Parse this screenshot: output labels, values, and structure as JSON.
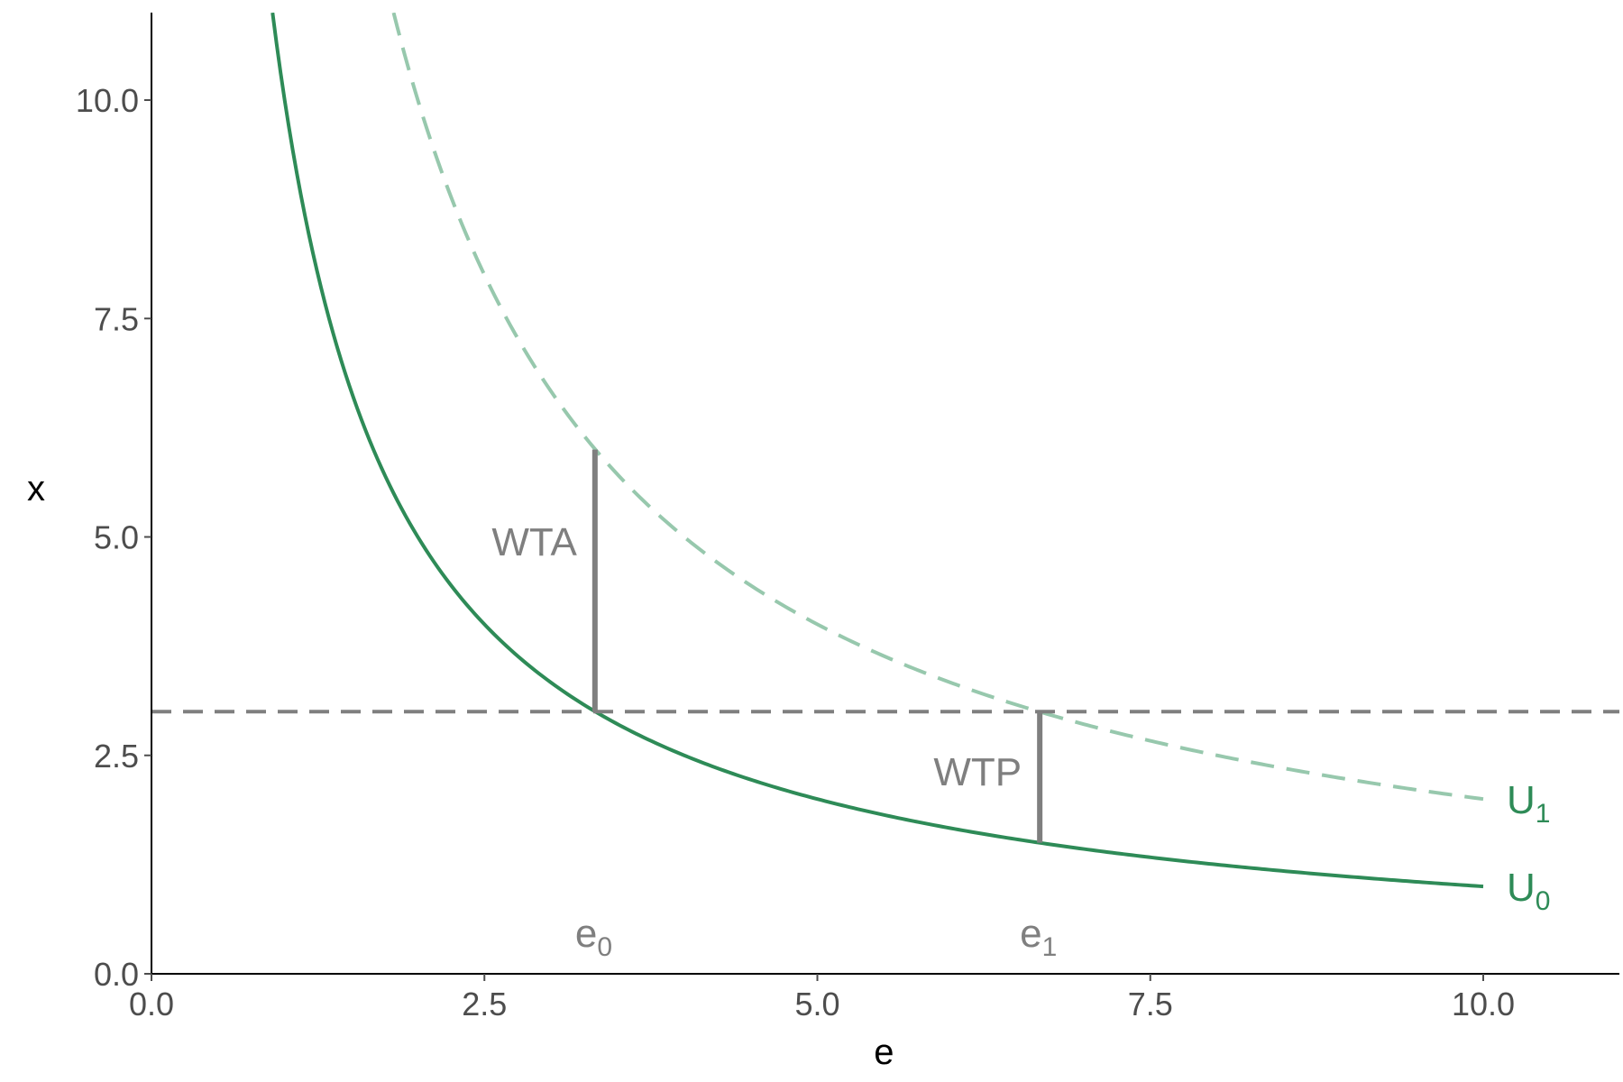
{
  "colors": {
    "u0": "#2e8b57",
    "u1": "#97c8ad",
    "guide": "#7f7f7f",
    "axis": "#000000",
    "tick_text": "#4d4d4d"
  },
  "chart_data": {
    "type": "line",
    "xlabel": "e",
    "ylabel": "x",
    "xlim": [
      0,
      11
    ],
    "ylim": [
      0,
      11
    ],
    "x_ticks": [
      0,
      2.5,
      5,
      7.5,
      10
    ],
    "x_tick_labels": [
      "0.0",
      "2.5",
      "5.0",
      "7.5",
      "10.0"
    ],
    "y_ticks": [
      0,
      2.5,
      5,
      7.5,
      10
    ],
    "y_tick_labels": [
      "0.0",
      "2.5",
      "5.0",
      "7.5",
      "10.0"
    ],
    "grid": false,
    "series": [
      {
        "label_main": "U",
        "label_sub": "0",
        "style": "solid",
        "constant": 10,
        "x": [
          0.91,
          1,
          1.25,
          1.5,
          1.75,
          2,
          2.5,
          3,
          3.33,
          4,
          5,
          6,
          6.67,
          7,
          8,
          9,
          10
        ],
        "values": [
          11,
          10,
          8,
          6.67,
          5.71,
          5,
          4,
          3.33,
          3,
          2.5,
          2,
          1.67,
          1.5,
          1.43,
          1.25,
          1.11,
          1
        ]
      },
      {
        "label_main": "U",
        "label_sub": "1",
        "style": "dashed",
        "constant": 20,
        "x": [
          1.82,
          2,
          2.5,
          3,
          3.33,
          4,
          5,
          6,
          6.67,
          7,
          8,
          9,
          10
        ],
        "values": [
          11,
          10,
          8,
          6.67,
          6,
          5,
          4,
          3.33,
          3,
          2.86,
          2.5,
          2.22,
          2
        ]
      }
    ],
    "hline": {
      "y": 3,
      "style": "dashed"
    },
    "segments": [
      {
        "label": "WTA",
        "x": 3.33,
        "y_from": 3,
        "y_to": 6
      },
      {
        "label": "WTP",
        "x": 6.67,
        "y_from": 1.5,
        "y_to": 3
      }
    ],
    "markers": [
      {
        "label_main": "e",
        "label_sub": "0",
        "x": 3.33
      },
      {
        "label_main": "e",
        "label_sub": "1",
        "x": 6.67
      }
    ]
  }
}
